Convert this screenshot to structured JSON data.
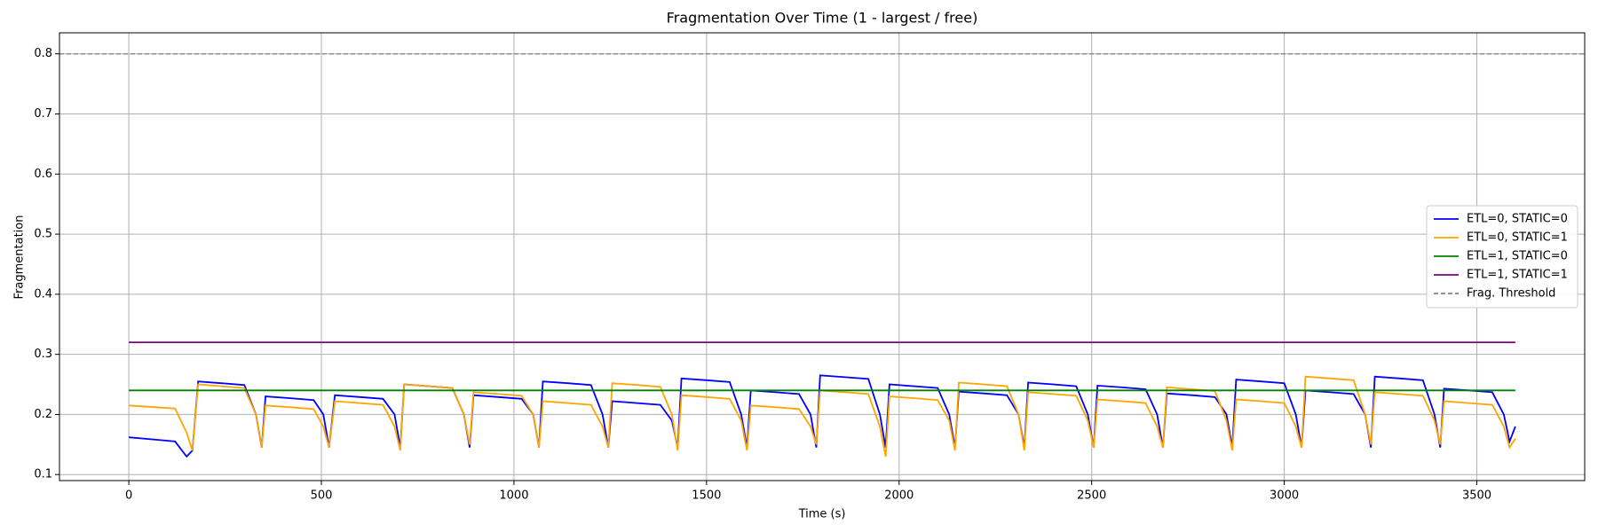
{
  "chart_data": {
    "type": "line",
    "title": "Fragmentation Over Time (1 - largest / free)",
    "xlabel": "Time (s)",
    "ylabel": "Fragmentation",
    "x": [
      0,
      70,
      120,
      150,
      165,
      180,
      240,
      300,
      330,
      345,
      355,
      420,
      480,
      505,
      520,
      535,
      600,
      660,
      690,
      705,
      715,
      780,
      840,
      870,
      885,
      895,
      960,
      1020,
      1050,
      1065,
      1075,
      1140,
      1200,
      1230,
      1245,
      1255,
      1320,
      1380,
      1410,
      1425,
      1435,
      1500,
      1560,
      1590,
      1605,
      1615,
      1680,
      1740,
      1770,
      1785,
      1795,
      1860,
      1920,
      1950,
      1965,
      1975,
      2040,
      2100,
      2130,
      2145,
      2155,
      2220,
      2280,
      2310,
      2325,
      2335,
      2400,
      2460,
      2490,
      2505,
      2515,
      2580,
      2640,
      2670,
      2685,
      2695,
      2760,
      2820,
      2850,
      2865,
      2875,
      2940,
      3000,
      3030,
      3045,
      3055,
      3120,
      3180,
      3210,
      3225,
      3235,
      3300,
      3360,
      3390,
      3405,
      3415,
      3480,
      3540,
      3570,
      3585,
      3600
    ],
    "series": [
      {
        "name": "ETL=0, STATIC=0",
        "color": "blue",
        "values": [
          0.162,
          0.158,
          0.155,
          0.13,
          0.14,
          0.255,
          0.252,
          0.249,
          0.2,
          0.145,
          0.23,
          0.227,
          0.224,
          0.2,
          0.145,
          0.232,
          0.229,
          0.226,
          0.2,
          0.145,
          0.25,
          0.247,
          0.244,
          0.2,
          0.145,
          0.232,
          0.229,
          0.226,
          0.2,
          0.145,
          0.255,
          0.252,
          0.249,
          0.2,
          0.145,
          0.222,
          0.219,
          0.216,
          0.19,
          0.145,
          0.26,
          0.257,
          0.254,
          0.2,
          0.145,
          0.24,
          0.237,
          0.234,
          0.2,
          0.145,
          0.265,
          0.262,
          0.259,
          0.2,
          0.145,
          0.25,
          0.247,
          0.244,
          0.2,
          0.145,
          0.238,
          0.235,
          0.232,
          0.2,
          0.145,
          0.253,
          0.25,
          0.247,
          0.2,
          0.145,
          0.248,
          0.245,
          0.242,
          0.2,
          0.145,
          0.235,
          0.232,
          0.229,
          0.2,
          0.145,
          0.258,
          0.255,
          0.252,
          0.2,
          0.145,
          0.24,
          0.237,
          0.234,
          0.2,
          0.145,
          0.263,
          0.26,
          0.257,
          0.2,
          0.145,
          0.243,
          0.24,
          0.237,
          0.2,
          0.155,
          0.18
        ]
      },
      {
        "name": "ETL=0, STATIC=1",
        "color": "orange",
        "values": [
          0.215,
          0.212,
          0.21,
          0.17,
          0.14,
          0.25,
          0.247,
          0.244,
          0.2,
          0.145,
          0.215,
          0.212,
          0.209,
          0.18,
          0.145,
          0.222,
          0.219,
          0.216,
          0.18,
          0.14,
          0.25,
          0.247,
          0.244,
          0.2,
          0.15,
          0.237,
          0.234,
          0.231,
          0.2,
          0.145,
          0.222,
          0.219,
          0.216,
          0.18,
          0.145,
          0.252,
          0.249,
          0.246,
          0.2,
          0.14,
          0.232,
          0.229,
          0.226,
          0.19,
          0.14,
          0.215,
          0.212,
          0.209,
          0.18,
          0.15,
          0.24,
          0.237,
          0.234,
          0.18,
          0.13,
          0.23,
          0.227,
          0.224,
          0.19,
          0.14,
          0.253,
          0.25,
          0.247,
          0.2,
          0.14,
          0.237,
          0.234,
          0.231,
          0.19,
          0.145,
          0.225,
          0.222,
          0.219,
          0.18,
          0.145,
          0.245,
          0.242,
          0.239,
          0.19,
          0.14,
          0.225,
          0.222,
          0.219,
          0.18,
          0.145,
          0.263,
          0.26,
          0.257,
          0.2,
          0.15,
          0.237,
          0.234,
          0.231,
          0.19,
          0.15,
          0.222,
          0.219,
          0.216,
          0.18,
          0.145,
          0.16
        ]
      },
      {
        "name": "ETL=1, STATIC=0",
        "color": "green",
        "x": [
          0,
          3600
        ],
        "values": [
          0.24,
          0.24
        ]
      },
      {
        "name": "ETL=1, STATIC=1",
        "color": "purple",
        "x": [
          0,
          3600
        ],
        "values": [
          0.32,
          0.32
        ]
      }
    ],
    "hlines": [
      {
        "value": 0.8,
        "label": "Frag. Threshold",
        "color": "gray",
        "style": "dashed"
      }
    ],
    "xlim": [
      -180,
      3780
    ],
    "xticks": [
      0,
      500,
      1000,
      1500,
      2000,
      2500,
      3000,
      3500
    ],
    "ylim": [
      0.09,
      0.835
    ],
    "yticks": [
      0.1,
      0.2,
      0.3,
      0.4,
      0.5,
      0.6,
      0.7,
      0.8
    ],
    "grid": true,
    "legend": "center right"
  }
}
